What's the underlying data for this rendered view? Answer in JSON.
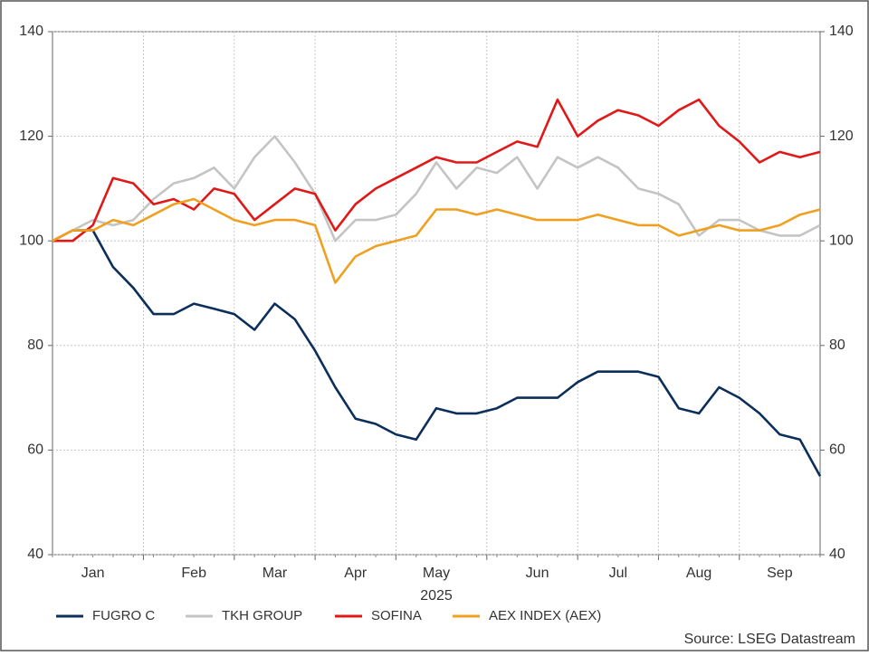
{
  "chart_data": {
    "type": "line",
    "xlabel": "2025",
    "source": "Source: LSEG Datastream",
    "categories": [
      null,
      null,
      "Jan",
      null,
      null,
      null,
      null,
      "Feb",
      null,
      null,
      null,
      "Mar",
      null,
      null,
      null,
      "Apr",
      null,
      null,
      null,
      "May",
      null,
      null,
      null,
      null,
      "Jun",
      null,
      null,
      null,
      "Jul",
      null,
      null,
      null,
      "Aug",
      null,
      null,
      null,
      "Sep",
      null,
      null
    ],
    "series": [
      {
        "name": "FUGRO C",
        "color": "#0b2f5a",
        "values": [
          100,
          102,
          102,
          95,
          91,
          86,
          86,
          88,
          87,
          86,
          83,
          88,
          85,
          79,
          72,
          66,
          65,
          63,
          62,
          68,
          67,
          67,
          68,
          70,
          70,
          70,
          73,
          75,
          75,
          75,
          74,
          68,
          67,
          72,
          70,
          67,
          63,
          62,
          55
        ]
      },
      {
        "name": "TKH GROUP",
        "color": "#c4c4c4",
        "values": [
          100,
          102,
          104,
          103,
          104,
          108,
          111,
          112,
          114,
          110,
          116,
          120,
          115,
          109,
          100,
          104,
          104,
          105,
          109,
          115,
          110,
          114,
          113,
          116,
          110,
          116,
          114,
          116,
          114,
          110,
          109,
          107,
          101,
          104,
          104,
          102,
          101,
          101,
          103
        ]
      },
      {
        "name": "SOFINA",
        "color": "#e01818",
        "values": [
          100,
          100,
          103,
          112,
          111,
          107,
          108,
          106,
          110,
          109,
          104,
          107,
          110,
          109,
          102,
          107,
          110,
          112,
          114,
          116,
          115,
          115,
          117,
          119,
          118,
          127,
          120,
          123,
          125,
          124,
          122,
          125,
          127,
          122,
          119,
          115,
          117,
          116,
          117
        ]
      },
      {
        "name": "AEX INDEX (AEX)",
        "color": "#f0a020",
        "values": [
          100,
          102,
          102,
          104,
          103,
          105,
          107,
          108,
          106,
          104,
          103,
          104,
          104,
          103,
          92,
          97,
          99,
          100,
          101,
          106,
          106,
          105,
          106,
          105,
          104,
          104,
          104,
          105,
          104,
          103,
          103,
          101,
          102,
          103,
          102,
          102,
          103,
          105,
          106
        ]
      }
    ],
    "ylim": [
      40,
      140
    ],
    "yticks": [
      40,
      60,
      80,
      100,
      120,
      140
    ],
    "y2lim": [
      40,
      140
    ],
    "y2ticks": [
      40,
      60,
      80,
      100,
      120,
      140
    ],
    "grid": true,
    "legend": "bottom"
  }
}
